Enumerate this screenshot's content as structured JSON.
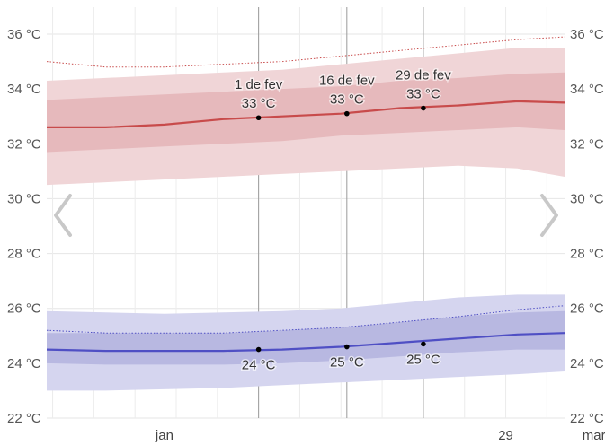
{
  "chart_data": {
    "type": "area",
    "y_unit": "°C",
    "ylim": [
      22,
      36
    ],
    "yticks": [
      "22 °C",
      "24 °C",
      "26 °C",
      "28 °C",
      "30 °C",
      "32 °C",
      "34 °C",
      "36 °C"
    ],
    "yticks_right": [
      "22 °C",
      "24 °C",
      "26 °C",
      "28 °C",
      "30 °C",
      "32 °C",
      "34 °C",
      "36 °C"
    ],
    "x_range_days": [
      -20,
      68
    ],
    "x_tick_labels": [
      {
        "label": "jan",
        "day": 0
      },
      {
        "label": "29",
        "day": 58
      },
      {
        "label": "mar",
        "day": 73
      }
    ],
    "grid": true,
    "highlight_days": [
      16,
      31,
      44
    ],
    "colors": {
      "high_line": "#c84b4b",
      "high_band_outer": "#f0d5d7",
      "high_band_inner": "#e6b9bc",
      "low_line": "#4f4fc4",
      "low_band_outer": "#d5d5ef",
      "low_band_inner": "#b8b8e1"
    },
    "series": [
      {
        "key": "high",
        "x": [
          -20,
          -10,
          0,
          10,
          20,
          30,
          40,
          50,
          60,
          68
        ],
        "avg": [
          32.6,
          32.6,
          32.7,
          32.9,
          33.0,
          33.1,
          33.3,
          33.4,
          33.55,
          33.5
        ],
        "p25": [
          31.7,
          31.8,
          31.9,
          32.0,
          32.1,
          32.3,
          32.4,
          32.5,
          32.6,
          32.5
        ],
        "p75": [
          33.6,
          33.7,
          33.8,
          33.9,
          34.0,
          34.1,
          34.3,
          34.4,
          34.55,
          34.6
        ],
        "p10": [
          30.5,
          30.6,
          30.7,
          30.8,
          30.9,
          31.0,
          31.1,
          31.2,
          31.1,
          30.8
        ],
        "p90": [
          34.3,
          34.4,
          34.5,
          34.6,
          34.7,
          34.9,
          35.1,
          35.3,
          35.5,
          35.5
        ],
        "record": [
          35.0,
          34.8,
          34.8,
          34.9,
          35.0,
          35.2,
          35.4,
          35.6,
          35.8,
          35.9
        ]
      },
      {
        "key": "low",
        "x": [
          -20,
          -10,
          0,
          10,
          20,
          30,
          40,
          50,
          60,
          68
        ],
        "avg": [
          24.5,
          24.45,
          24.45,
          24.45,
          24.5,
          24.6,
          24.75,
          24.9,
          25.05,
          25.1
        ],
        "p25": [
          24.0,
          23.95,
          23.95,
          23.95,
          24.0,
          24.1,
          24.25,
          24.4,
          24.5,
          24.5
        ],
        "p75": [
          25.1,
          25.1,
          25.1,
          25.1,
          25.2,
          25.3,
          25.5,
          25.7,
          25.85,
          25.9
        ],
        "p10": [
          23.0,
          23.0,
          23.05,
          23.1,
          23.2,
          23.3,
          23.4,
          23.5,
          23.6,
          23.7
        ],
        "p90": [
          25.9,
          25.85,
          25.8,
          25.85,
          25.9,
          26.0,
          26.2,
          26.4,
          26.5,
          26.5
        ],
        "record": [
          25.2,
          25.1,
          25.1,
          25.1,
          25.2,
          25.3,
          25.5,
          25.7,
          25.95,
          26.1
        ]
      }
    ],
    "annotations": [
      {
        "series": "high",
        "day": 16,
        "value": 32.95,
        "date": "1 de fev",
        "label": "33 °C"
      },
      {
        "series": "high",
        "day": 31,
        "value": 33.1,
        "date": "16 de fev",
        "label": "33 °C"
      },
      {
        "series": "high",
        "day": 44,
        "value": 33.3,
        "date": "29 de fev",
        "label": "33 °C"
      },
      {
        "series": "low",
        "day": 16,
        "value": 24.5,
        "date": "",
        "label": "24 °C"
      },
      {
        "series": "low",
        "day": 31,
        "value": 24.6,
        "date": "",
        "label": "25 °C"
      },
      {
        "series": "low",
        "day": 44,
        "value": 24.7,
        "date": "",
        "label": "25 °C"
      }
    ]
  },
  "nav": {
    "prev_icon": "chevron-left-icon",
    "next_icon": "chevron-right-icon"
  }
}
